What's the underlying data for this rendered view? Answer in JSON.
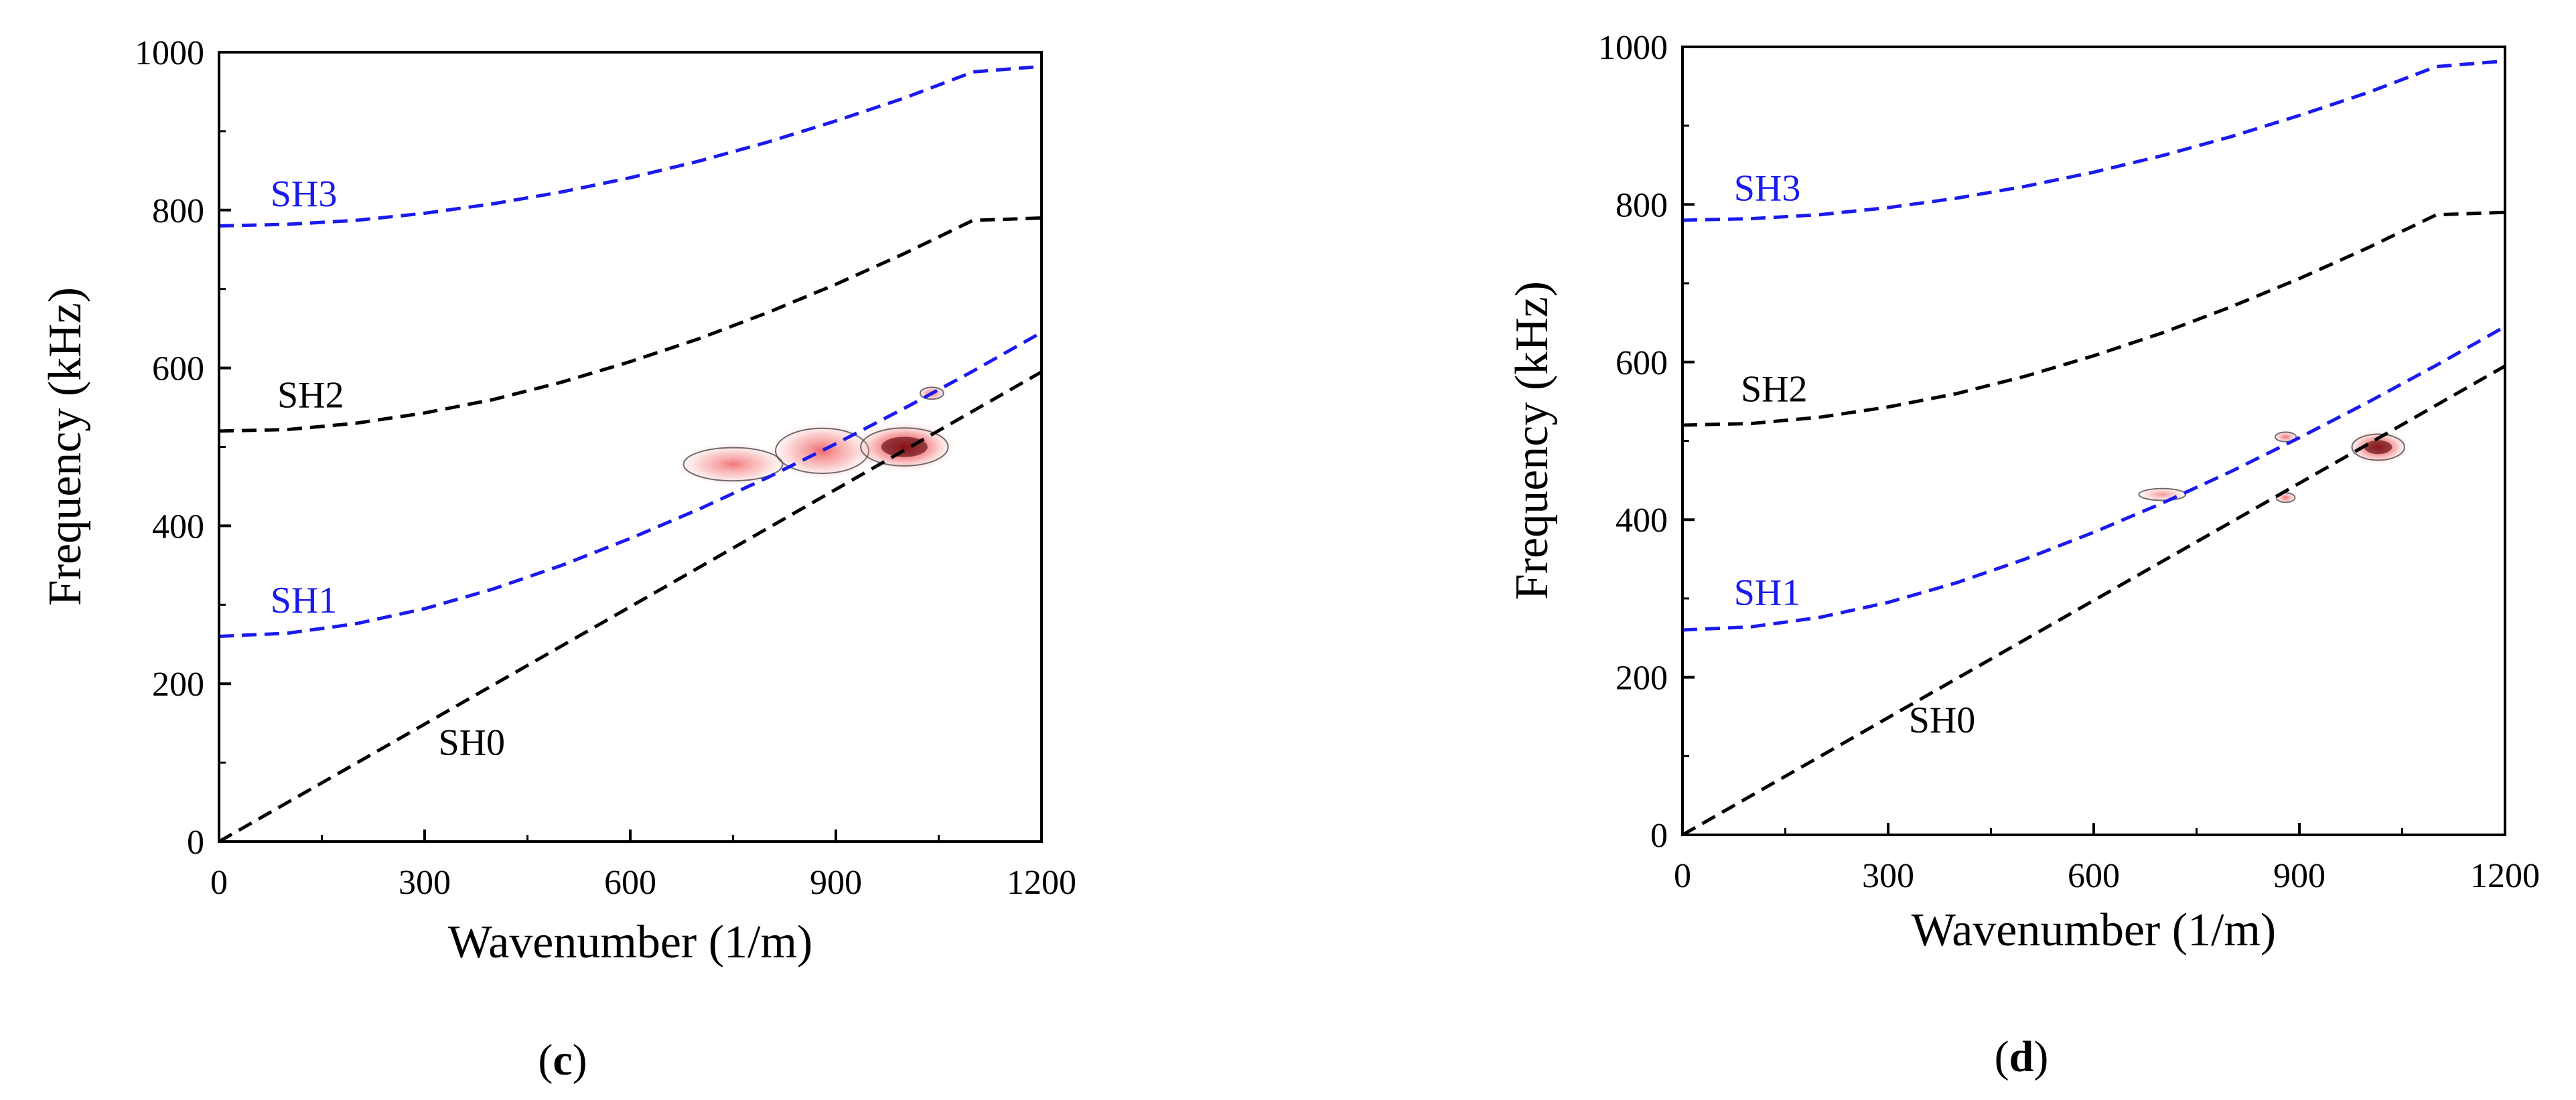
{
  "chart_data": [
    {
      "type": "line",
      "panel_label": "(c)",
      "xlabel": "Wavenumber (1/m)",
      "ylabel": "Frequency (kHz)",
      "xlim": [
        0,
        1200
      ],
      "ylim": [
        0,
        1000
      ],
      "xticks": [
        "0",
        "300",
        "600",
        "900",
        "1200"
      ],
      "yticks": [
        "0",
        "200",
        "400",
        "600",
        "800",
        "1000"
      ],
      "series": [
        {
          "name": "SH0",
          "color": "#000000",
          "dash": true,
          "x": [
            0,
            1200
          ],
          "y": [
            0,
            595
          ],
          "label_at": [
            320,
            110
          ]
        },
        {
          "name": "SH1",
          "color": "#1a1aee",
          "dash": true,
          "x": [
            0,
            100,
            200,
            300,
            400,
            500,
            600,
            700,
            800,
            900,
            1000,
            1100,
            1200
          ],
          "y": [
            260,
            264,
            276,
            295,
            320,
            350,
            384,
            421,
            461,
            504,
            549,
            596,
            645
          ],
          "label_at": [
            75,
            290
          ]
        },
        {
          "name": "SH2",
          "color": "#000000",
          "dash": true,
          "x": [
            0,
            100,
            200,
            300,
            400,
            500,
            600,
            700,
            800,
            900,
            1000,
            1100,
            1200
          ],
          "y": [
            520,
            522,
            530,
            543,
            560,
            582,
            608,
            637,
            670,
            706,
            745,
            787,
            790
          ],
          "label_at": [
            85,
            550
          ]
        },
        {
          "name": "SH3",
          "color": "#1a1aee",
          "dash": true,
          "x": [
            0,
            100,
            200,
            300,
            400,
            500,
            600,
            700,
            800,
            900,
            1000,
            1100,
            1200
          ],
          "y": [
            780,
            782,
            787,
            796,
            808,
            823,
            841,
            862,
            886,
            913,
            942,
            975,
            982
          ],
          "label_at": [
            75,
            805
          ]
        }
      ],
      "energy_blobs": [
        {
          "x": 750,
          "y": 478,
          "rx": 85,
          "ry": 28,
          "level": 0.35
        },
        {
          "x": 880,
          "y": 495,
          "rx": 80,
          "ry": 38,
          "level": 0.45
        },
        {
          "x": 1000,
          "y": 500,
          "rx": 75,
          "ry": 32,
          "level": 1.0
        },
        {
          "x": 1040,
          "y": 568,
          "rx": 20,
          "ry": 10,
          "level": 0.4
        }
      ]
    },
    {
      "type": "line",
      "panel_label": "(d)",
      "xlabel": "Wavenumber (1/m)",
      "ylabel": "Frequency (kHz)",
      "xlim": [
        0,
        1200
      ],
      "ylim": [
        0,
        1000
      ],
      "xticks": [
        "0",
        "300",
        "600",
        "900",
        "1200"
      ],
      "yticks": [
        "0",
        "200",
        "400",
        "600",
        "800",
        "1000"
      ],
      "series": [
        {
          "name": "SH0",
          "color": "#000000",
          "dash": true,
          "x": [
            0,
            1200
          ],
          "y": [
            0,
            595
          ],
          "label_at": [
            330,
            130
          ]
        },
        {
          "name": "SH1",
          "color": "#1a1aee",
          "dash": true,
          "x": [
            0,
            100,
            200,
            300,
            400,
            500,
            600,
            700,
            800,
            900,
            1000,
            1100,
            1200
          ],
          "y": [
            260,
            264,
            276,
            295,
            320,
            350,
            384,
            421,
            461,
            504,
            549,
            596,
            645
          ],
          "label_at": [
            75,
            292
          ]
        },
        {
          "name": "SH2",
          "color": "#000000",
          "dash": true,
          "x": [
            0,
            100,
            200,
            300,
            400,
            500,
            600,
            700,
            800,
            900,
            1000,
            1100,
            1200
          ],
          "y": [
            520,
            522,
            530,
            543,
            560,
            582,
            608,
            637,
            670,
            706,
            745,
            787,
            790
          ],
          "label_at": [
            85,
            550
          ]
        },
        {
          "name": "SH3",
          "color": "#1a1aee",
          "dash": true,
          "x": [
            0,
            100,
            200,
            300,
            400,
            500,
            600,
            700,
            800,
            900,
            1000,
            1100,
            1200
          ],
          "y": [
            780,
            782,
            787,
            796,
            808,
            823,
            841,
            862,
            886,
            913,
            942,
            975,
            982
          ],
          "label_at": [
            75,
            805
          ]
        }
      ],
      "energy_blobs": [
        {
          "x": 1015,
          "y": 492,
          "rx": 45,
          "ry": 22,
          "level": 0.9
        },
        {
          "x": 880,
          "y": 505,
          "rx": 18,
          "ry": 8,
          "level": 0.4
        },
        {
          "x": 880,
          "y": 428,
          "rx": 16,
          "ry": 8,
          "level": 0.4
        },
        {
          "x": 700,
          "y": 432,
          "rx": 40,
          "ry": 10,
          "level": 0.15
        }
      ]
    }
  ]
}
